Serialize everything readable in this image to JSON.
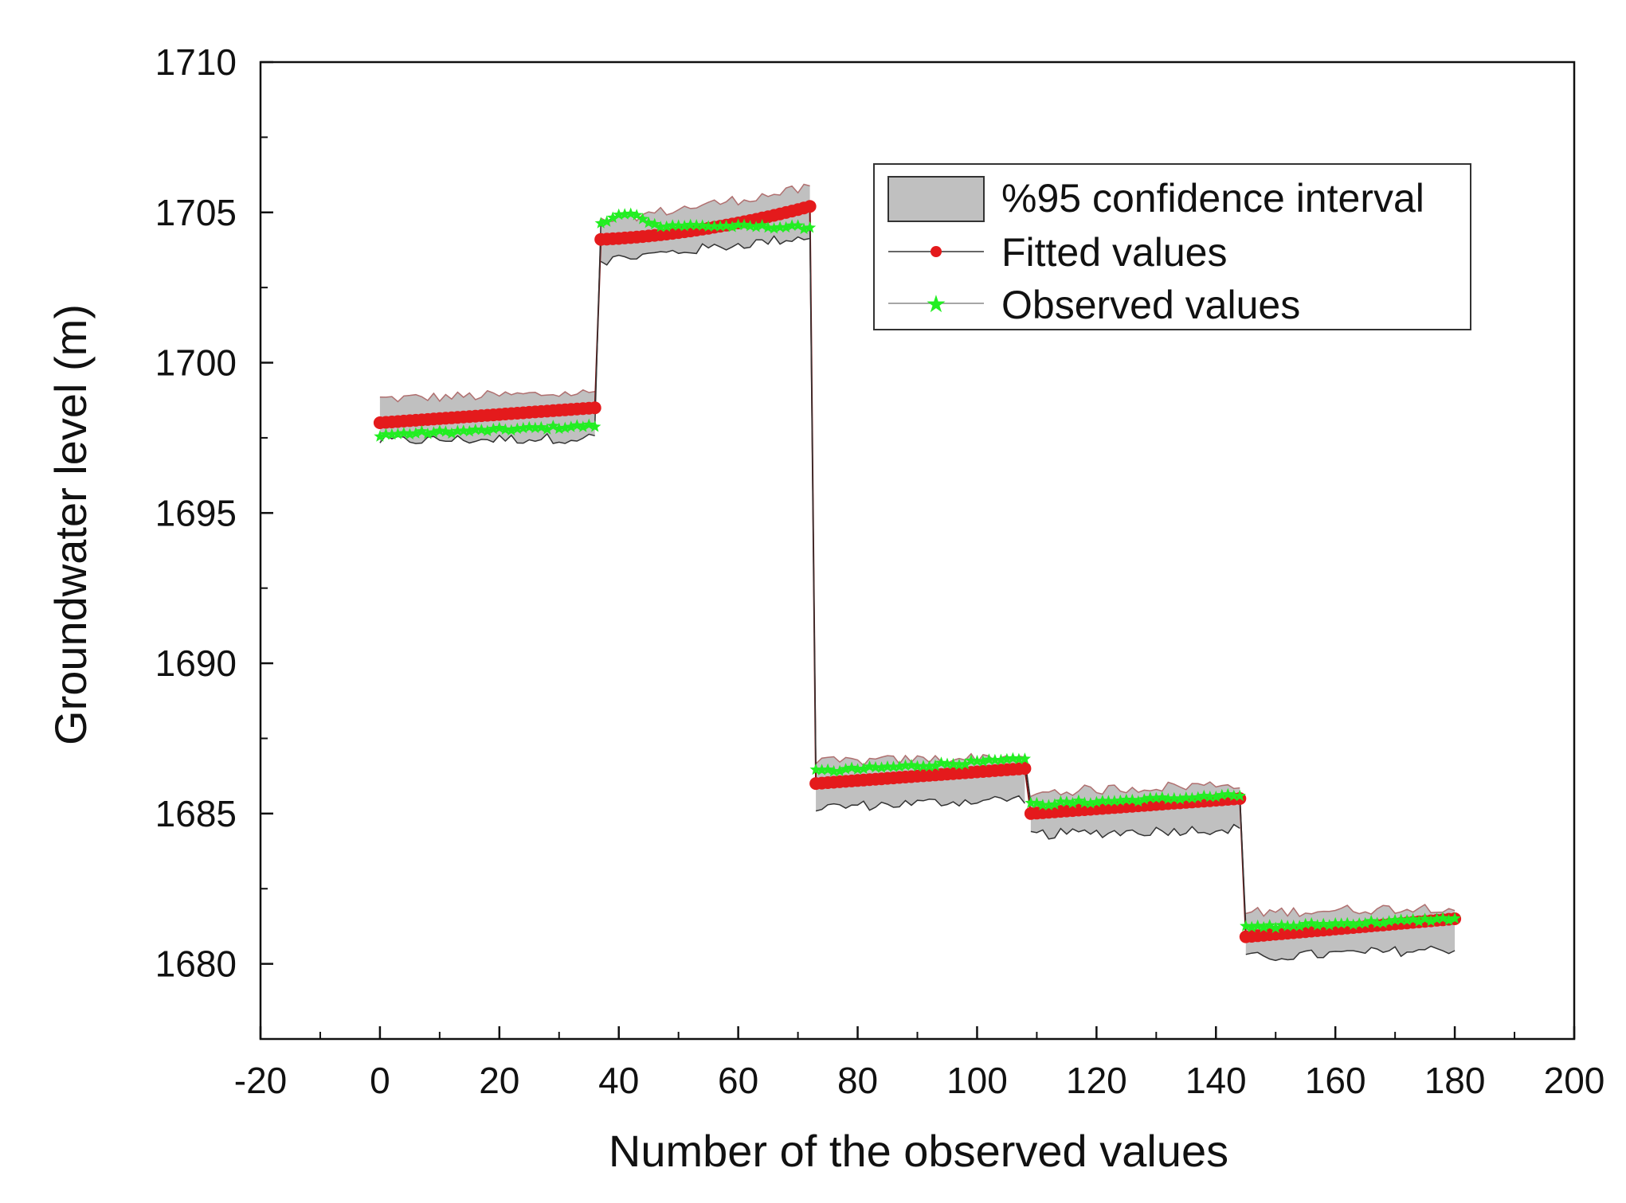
{
  "chart_data": {
    "type": "line",
    "title": "",
    "xlabel": "Number of the observed values",
    "ylabel": "Groundwater level (m)",
    "xlim": [
      -20,
      200
    ],
    "ylim": [
      1677.5,
      1710
    ],
    "x_ticks": [
      -20,
      0,
      20,
      40,
      60,
      80,
      100,
      120,
      140,
      160,
      180,
      200
    ],
    "y_ticks": [
      1680,
      1685,
      1690,
      1695,
      1700,
      1705,
      1710
    ],
    "grid": false,
    "legend_position": "top-right",
    "colors": {
      "fitted": "#e41a1c",
      "observed": "#22ee22",
      "band_fill": "#c0c0c0",
      "band_edge": "#333333",
      "axis": "#111111"
    },
    "segments": [
      {
        "x_start": 0,
        "x_end": 36,
        "fitted": [
          1698.0,
          1698.5
        ],
        "observed": [
          1697.6,
          1697.9
        ],
        "ci_lower": [
          1697.4,
          1697.5
        ],
        "ci_upper": [
          1698.8,
          1699.0
        ]
      },
      {
        "x_start": 37,
        "x_end": 72,
        "fitted": [
          1704.1,
          1705.2
        ],
        "observed": [
          1704.6,
          1704.5
        ],
        "ci_lower": [
          1703.4,
          1704.2
        ],
        "ci_upper": [
          1704.7,
          1705.8
        ]
      },
      {
        "x_start": 73,
        "x_end": 108,
        "fitted": [
          1686.0,
          1686.5
        ],
        "observed": [
          1686.4,
          1686.8
        ],
        "ci_lower": [
          1685.2,
          1685.5
        ],
        "ci_upper": [
          1686.7,
          1686.9
        ]
      },
      {
        "x_start": 109,
        "x_end": 144,
        "fitted": [
          1685.0,
          1685.5
        ],
        "observed": [
          1685.3,
          1685.6
        ],
        "ci_lower": [
          1684.3,
          1684.5
        ],
        "ci_upper": [
          1685.7,
          1686.0
        ]
      },
      {
        "x_start": 145,
        "x_end": 180,
        "fitted": [
          1680.9,
          1681.5
        ],
        "observed": [
          1681.2,
          1681.5
        ],
        "ci_lower": [
          1680.2,
          1680.5
        ],
        "ci_upper": [
          1681.7,
          1681.9
        ]
      }
    ],
    "series": [
      {
        "name": "%95 confidence interval",
        "kind": "band"
      },
      {
        "name": "Fitted values",
        "kind": "line-marker"
      },
      {
        "name": "Observed values",
        "kind": "line-marker"
      }
    ]
  }
}
